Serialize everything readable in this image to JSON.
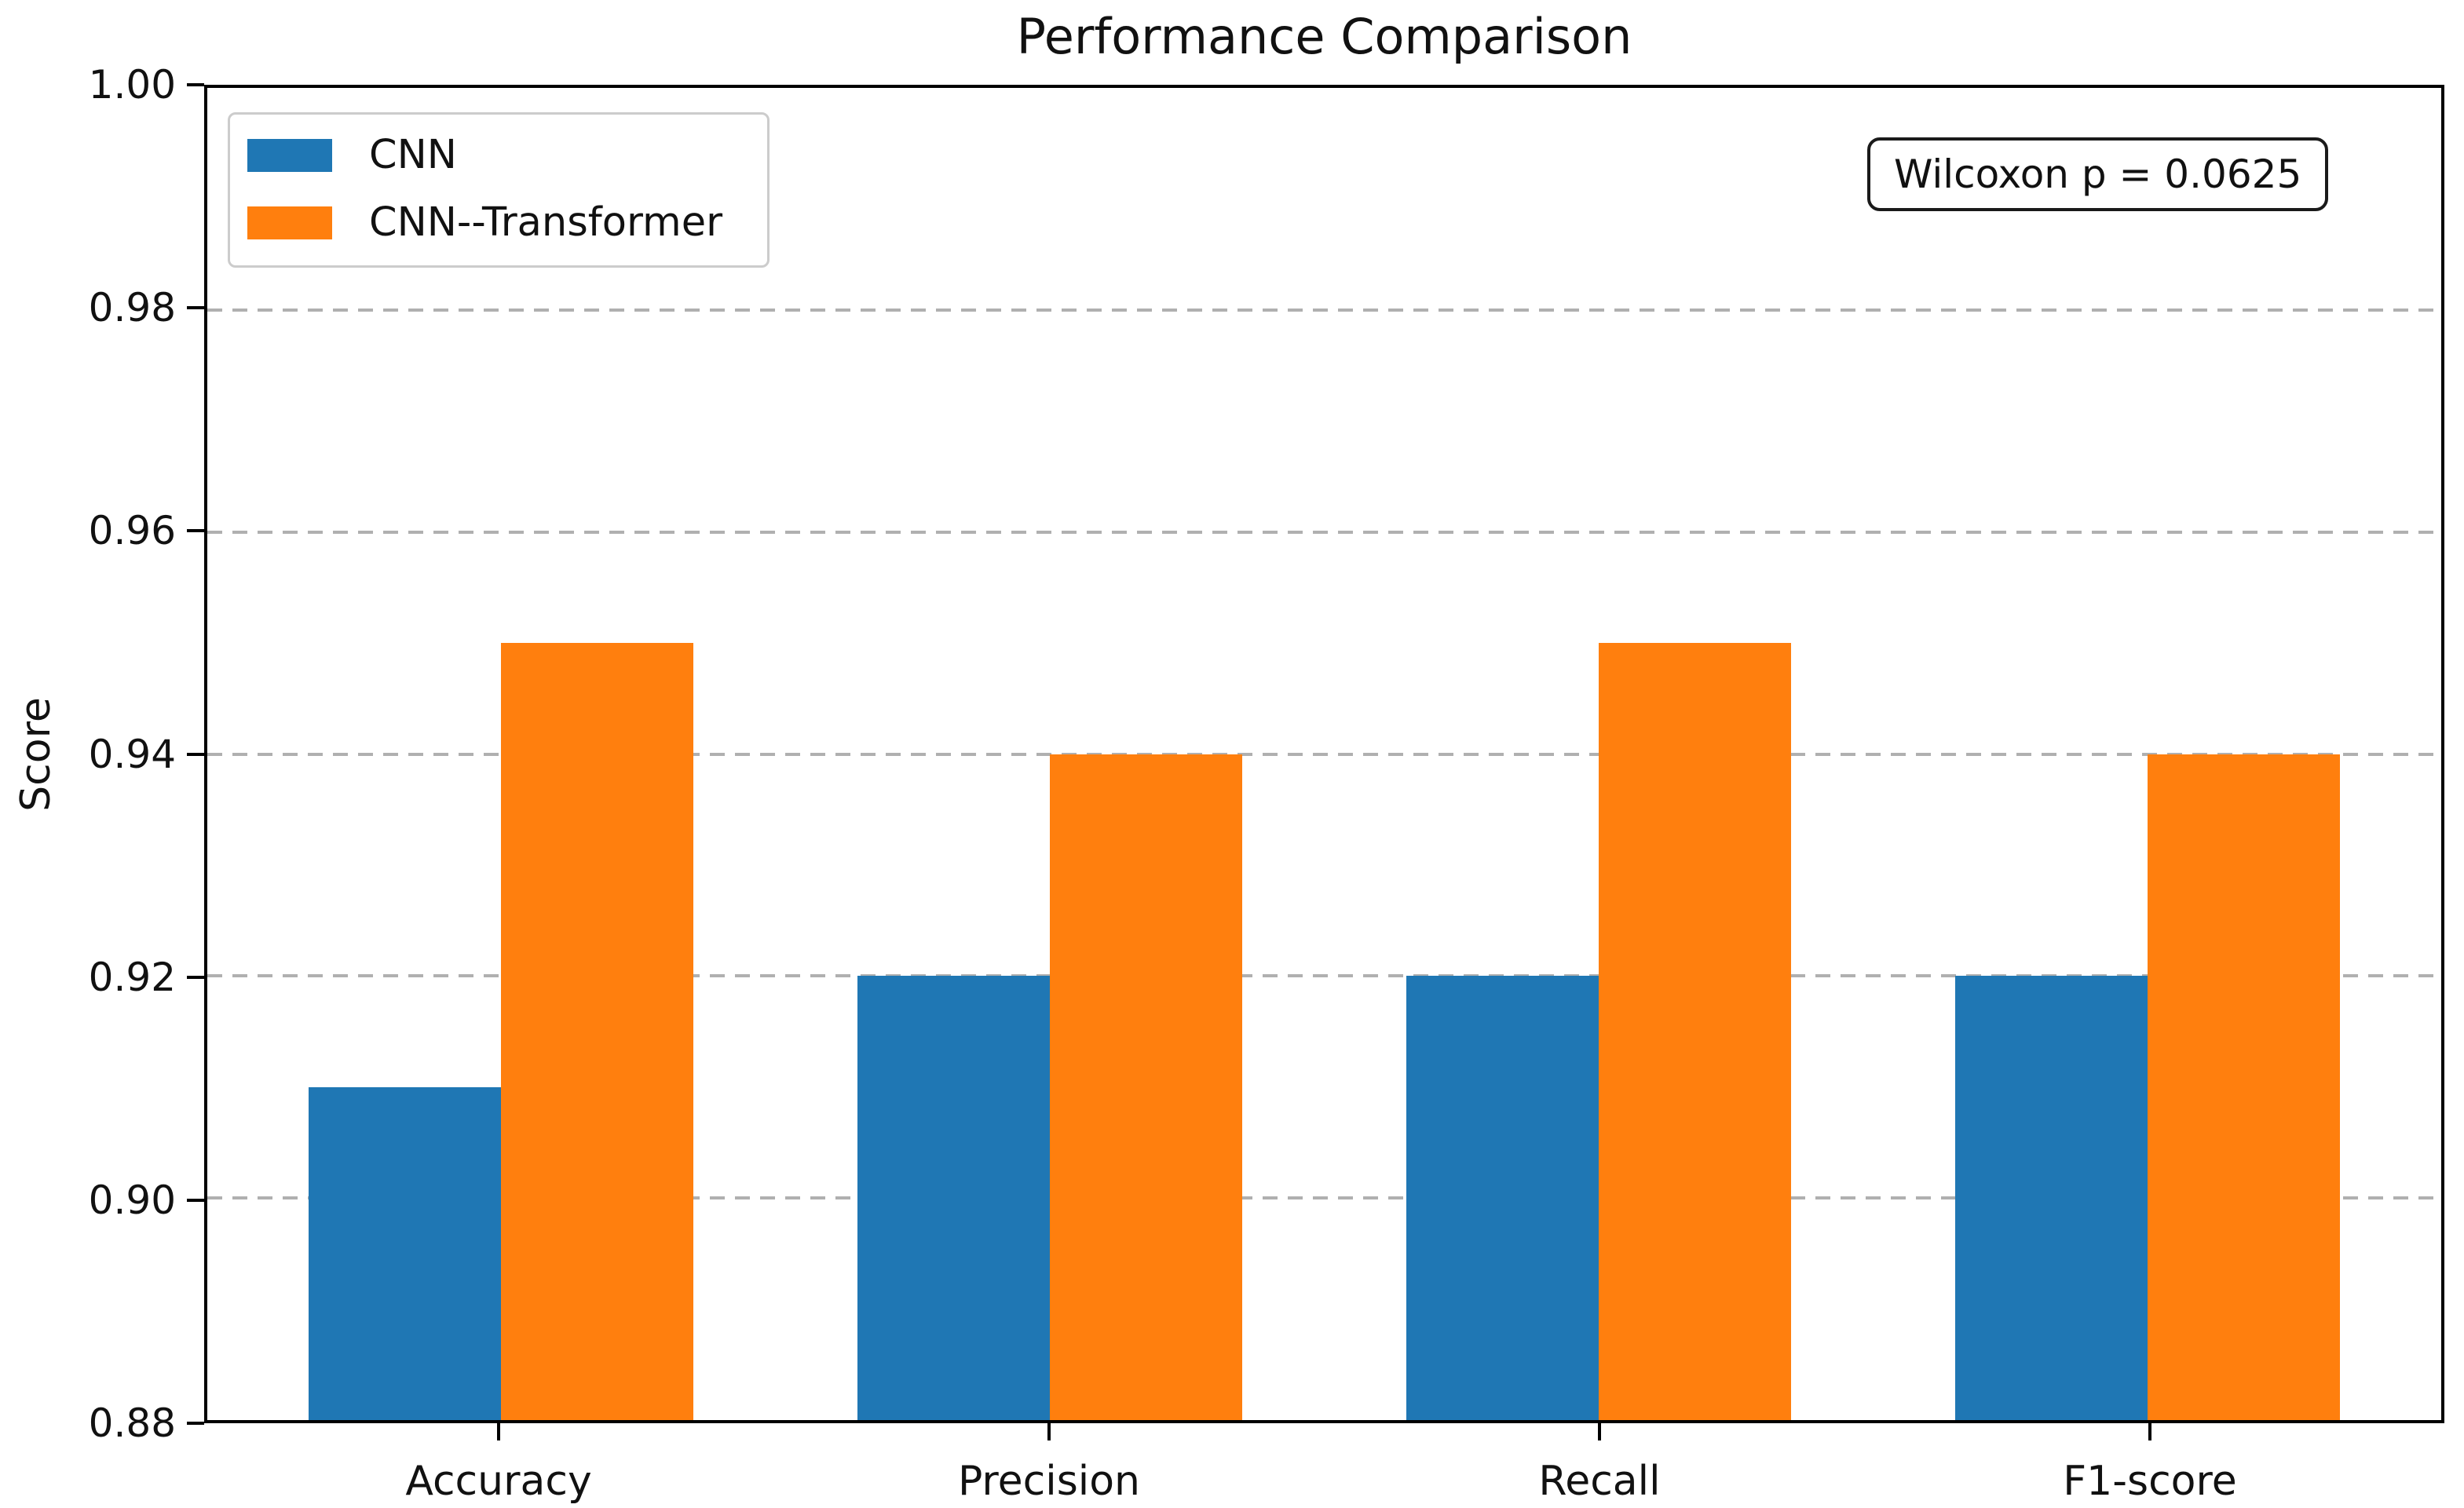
{
  "chart_data": {
    "type": "bar",
    "title": "Performance Comparison",
    "ylabel": "Score",
    "xlabel": "",
    "categories": [
      "Accuracy",
      "Precision",
      "Recall",
      "F1-score"
    ],
    "series": [
      {
        "name": "CNN",
        "color": "#1f77b4",
        "values": [
          0.91,
          0.92,
          0.92,
          0.92
        ]
      },
      {
        "name": "CNN--Transformer",
        "color": "#ff7f0e",
        "values": [
          0.95,
          0.94,
          0.95,
          0.94
        ]
      }
    ],
    "ylim": [
      0.88,
      1.0
    ],
    "yticks": [
      0.88,
      0.9,
      0.92,
      0.94,
      0.96,
      0.98,
      1.0
    ],
    "grid": true,
    "grid_style": "dashed",
    "grid_color": "#b0b0b0",
    "bar_width": 0.35,
    "legend_position": "upper left",
    "annotation": "Wilcoxon p = 0.0625"
  }
}
